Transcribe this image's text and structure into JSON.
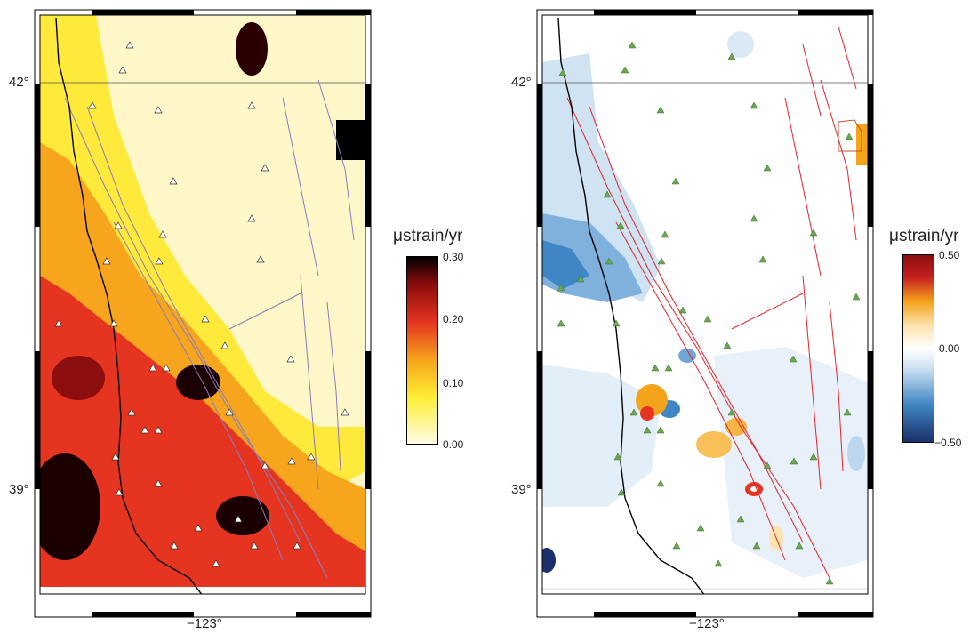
{
  "left_map": {
    "lat_label_top": "42°",
    "lat_label_bottom": "39°",
    "lon_label": "−123°",
    "station_marker": "white-triangle",
    "fault_color": "#8a7bbf",
    "coast_color": "#000000"
  },
  "right_map": {
    "lat_label_top": "42°",
    "lat_label_bottom": "39°",
    "lon_label": "−123°",
    "station_marker": "green-triangle",
    "marker_color": "#6aa84f",
    "fault_color": "#e0252a",
    "coast_color": "#000000"
  },
  "left_colorbar": {
    "title": "μstrain/yr",
    "ticks": [
      "0.30",
      "0.20",
      "0.10",
      "0.00"
    ],
    "colors": [
      "#fffbe6",
      "#ffee33",
      "#f5a31a",
      "#e53420",
      "#8b0d0d",
      "#000000"
    ]
  },
  "right_colorbar": {
    "title": "μstrain/yr",
    "ticks": [
      "0.50",
      "0.00",
      "−0.50"
    ],
    "colors": [
      "#1a2f6b",
      "#3f86c4",
      "#ffffff",
      "#f5a31a",
      "#c71f1f",
      "#8b0d0d"
    ]
  }
}
